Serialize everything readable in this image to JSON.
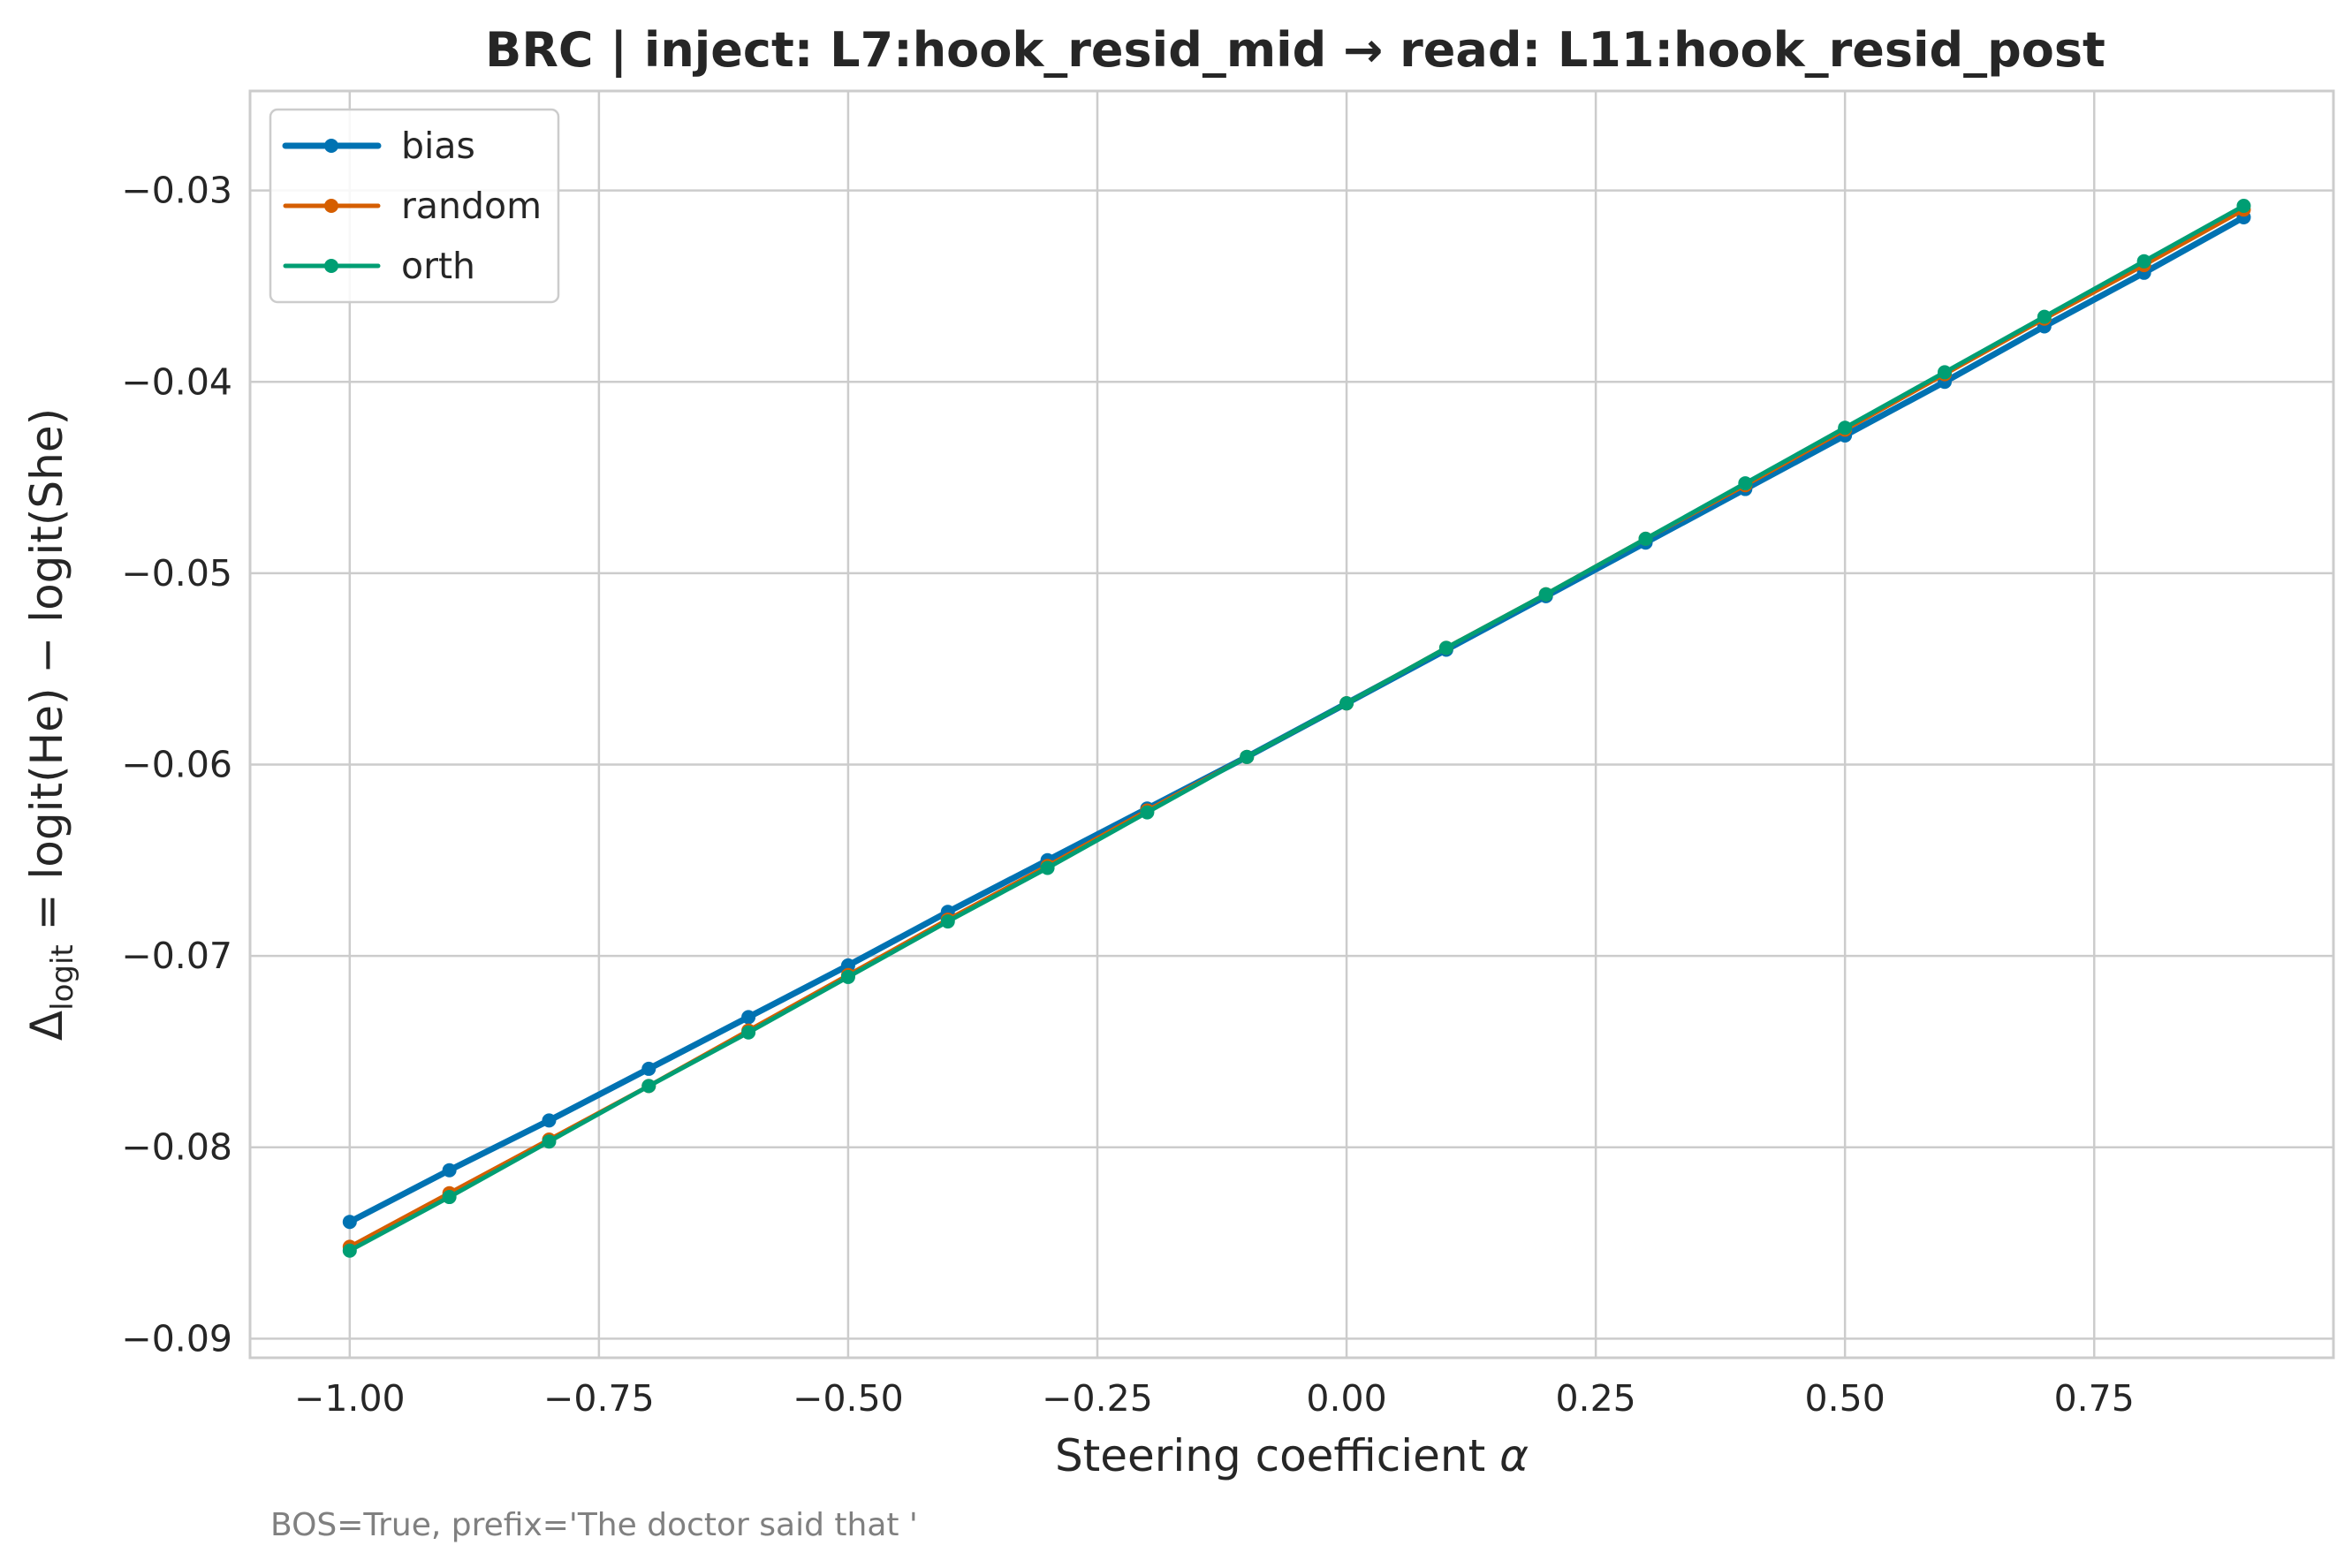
{
  "chart_data": {
    "type": "line",
    "title": "BRC | inject: L7:hook_resid_mid → read: L11:hook_resid_post",
    "xlabel_main": "Steering coefficient ",
    "xlabel_symbol": "α",
    "ylabel": {
      "delta": "Δ",
      "subscript": "logit",
      "rest": " = logit(He) − logit(She)"
    },
    "footnote": "BOS=True, prefix='The doctor said that '",
    "xlim": [
      -1.1,
      0.99
    ],
    "ylim": [
      -0.091,
      -0.0248
    ],
    "xticks": [
      -1.0,
      -0.75,
      -0.5,
      -0.25,
      0.0,
      0.25,
      0.5,
      0.75
    ],
    "xtick_labels": [
      "−1.00",
      "−0.75",
      "−0.50",
      "−0.25",
      "0.00",
      "0.25",
      "0.50",
      "0.75"
    ],
    "yticks": [
      -0.09,
      -0.08,
      -0.07,
      -0.06,
      -0.05,
      -0.04,
      -0.03
    ],
    "ytick_labels": [
      "−0.09",
      "−0.08",
      "−0.07",
      "−0.06",
      "−0.05",
      "−0.04",
      "−0.03"
    ],
    "grid": true,
    "legend_position": "upper-left",
    "x": [
      -1.0,
      -0.9,
      -0.8,
      -0.7,
      -0.6,
      -0.5,
      -0.4,
      -0.3,
      -0.2,
      -0.1,
      0.0,
      0.1,
      0.2,
      0.3,
      0.4,
      0.5,
      0.6,
      0.7,
      0.8,
      0.9
    ],
    "series": [
      {
        "name": "bias",
        "color": "#0072b2",
        "values": [
          -0.0839,
          -0.0812,
          -0.0786,
          -0.0759,
          -0.0732,
          -0.0705,
          -0.0677,
          -0.065,
          -0.0623,
          -0.0596,
          -0.0568,
          -0.054,
          -0.0512,
          -0.0484,
          -0.0456,
          -0.0428,
          -0.04,
          -0.0371,
          -0.0343,
          -0.0314
        ]
      },
      {
        "name": "random",
        "color": "#d55e00",
        "values": [
          -0.0852,
          -0.0824,
          -0.0796,
          -0.0768,
          -0.0739,
          -0.071,
          -0.0681,
          -0.0653,
          -0.0624,
          -0.0596,
          -0.0568,
          -0.0539,
          -0.0511,
          -0.0482,
          -0.0454,
          -0.0425,
          -0.0396,
          -0.0367,
          -0.0339,
          -0.031
        ]
      },
      {
        "name": "orth",
        "color": "#009e73",
        "values": [
          -0.0854,
          -0.0826,
          -0.0797,
          -0.0768,
          -0.074,
          -0.0711,
          -0.0682,
          -0.0654,
          -0.0625,
          -0.0596,
          -0.0568,
          -0.0539,
          -0.0511,
          -0.0482,
          -0.0453,
          -0.0424,
          -0.0395,
          -0.0366,
          -0.0337,
          -0.0308
        ]
      }
    ]
  }
}
